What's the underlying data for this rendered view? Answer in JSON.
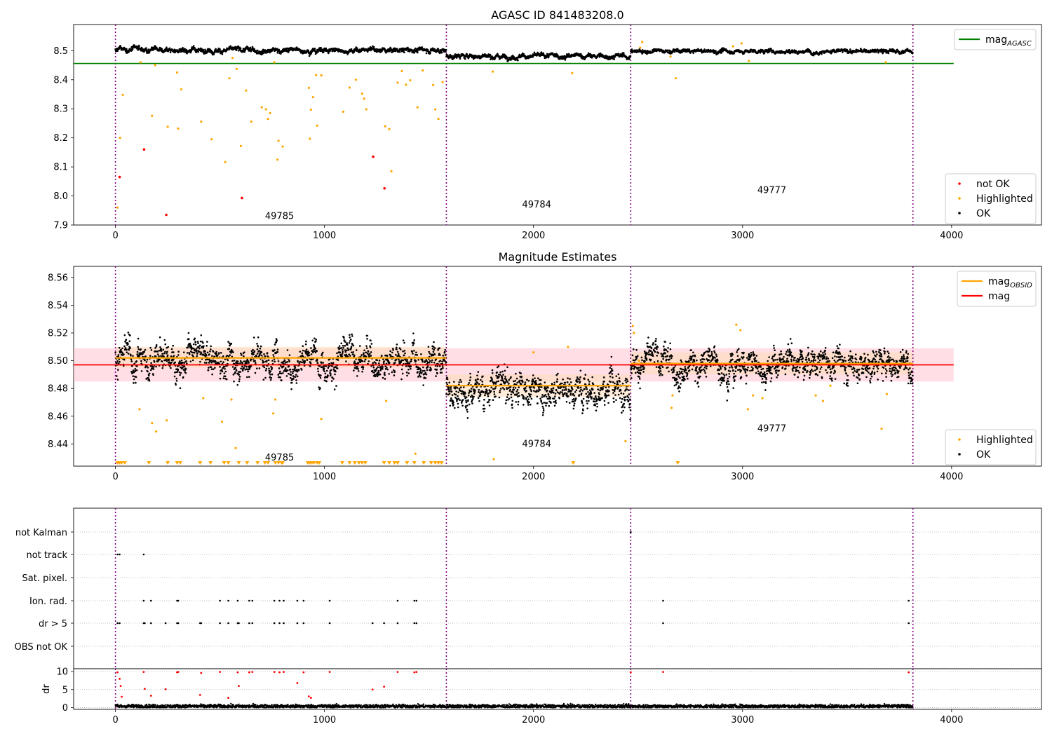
{
  "figure": {
    "title": "AGASC ID 841483208.0"
  },
  "colors": {
    "ok": "#000000",
    "highlighted": "#FFA500",
    "not_ok": "#FF0000",
    "agasc_line": "#008000",
    "obsid_line": "#FFA500",
    "mag_line": "#FF0000",
    "boundary": "#800080",
    "mag_band": "#FFC0CB",
    "obsid_band": "#FFDAB9"
  },
  "chart_data": [
    {
      "type": "scatter",
      "title": "",
      "xlim": [
        -200,
        4430
      ],
      "ylim": [
        7.9,
        8.59
      ],
      "x_ticks": [
        0,
        1000,
        2000,
        3000,
        4000
      ],
      "x_tick_labels": [
        "0",
        "1000",
        "2000",
        "3000",
        "4000"
      ],
      "y_ticks": [
        7.9,
        8.0,
        8.1,
        8.2,
        8.3,
        8.4,
        8.5
      ],
      "y_tick_labels": [
        "7.9",
        "8.0",
        "8.1",
        "8.2",
        "8.3",
        "8.4",
        "8.5"
      ],
      "obsid_boundaries": [
        0,
        1583,
        2465,
        3815
      ],
      "obsids": [
        {
          "label": "49785",
          "x": 785,
          "y": 7.93
        },
        {
          "label": "49784",
          "x": 2015,
          "y": 7.97
        },
        {
          "label": "49777",
          "x": 3140,
          "y": 8.02
        }
      ],
      "mag_agasc": 8.456,
      "mag_agasc_x_range": [
        -200,
        4010
      ],
      "ok_segments": [
        {
          "x_range": [
            0,
            1583
          ],
          "mean": 8.502,
          "spread": 0.006
        },
        {
          "x_range": [
            1583,
            2465
          ],
          "mean": 8.481,
          "spread": 0.006
        },
        {
          "x_range": [
            2465,
            3815
          ],
          "mean": 8.498,
          "spread": 0.005
        }
      ],
      "not_ok_points": [
        [
          20,
          8.065
        ],
        [
          137,
          8.16
        ],
        [
          243,
          7.935
        ],
        [
          605,
          7.993
        ],
        [
          1233,
          8.135
        ],
        [
          1287,
          8.026
        ]
      ],
      "highlighted_points": [
        [
          10,
          7.96
        ],
        [
          22,
          8.2
        ],
        [
          35,
          8.348
        ],
        [
          120,
          8.46
        ],
        [
          175,
          8.276
        ],
        [
          190,
          8.45
        ],
        [
          250,
          8.238
        ],
        [
          295,
          8.425
        ],
        [
          300,
          8.232
        ],
        [
          315,
          8.367
        ],
        [
          410,
          8.256
        ],
        [
          460,
          8.195
        ],
        [
          525,
          8.117
        ],
        [
          545,
          8.405
        ],
        [
          560,
          8.475
        ],
        [
          580,
          8.437
        ],
        [
          600,
          8.172
        ],
        [
          625,
          8.363
        ],
        [
          650,
          8.256
        ],
        [
          700,
          8.305
        ],
        [
          720,
          8.298
        ],
        [
          730,
          8.265
        ],
        [
          740,
          8.285
        ],
        [
          760,
          8.46
        ],
        [
          775,
          8.125
        ],
        [
          780,
          8.19
        ],
        [
          800,
          8.17
        ],
        [
          925,
          8.372
        ],
        [
          930,
          8.197
        ],
        [
          935,
          8.297
        ],
        [
          945,
          8.34
        ],
        [
          960,
          8.416
        ],
        [
          965,
          8.242
        ],
        [
          985,
          8.415
        ],
        [
          1090,
          8.29
        ],
        [
          1120,
          8.373
        ],
        [
          1150,
          8.4
        ],
        [
          1180,
          8.352
        ],
        [
          1190,
          8.335
        ],
        [
          1200,
          8.298
        ],
        [
          1290,
          8.24
        ],
        [
          1310,
          8.23
        ],
        [
          1320,
          8.085
        ],
        [
          1350,
          8.39
        ],
        [
          1370,
          8.43
        ],
        [
          1390,
          8.383
        ],
        [
          1410,
          8.398
        ],
        [
          1445,
          8.305
        ],
        [
          1470,
          8.432
        ],
        [
          1520,
          8.382
        ],
        [
          1530,
          8.298
        ],
        [
          1545,
          8.265
        ],
        [
          1565,
          8.392
        ],
        [
          1805,
          8.428
        ],
        [
          2185,
          8.423
        ],
        [
          2510,
          8.51
        ],
        [
          2520,
          8.53
        ],
        [
          2655,
          8.48
        ],
        [
          2680,
          8.405
        ],
        [
          2955,
          8.515
        ],
        [
          2995,
          8.525
        ],
        [
          3030,
          8.465
        ],
        [
          3685,
          8.46
        ]
      ],
      "legends": [
        {
          "entries": [
            {
              "label": "mag",
              "sub": "AGASC",
              "kind": "line",
              "color": "#008000"
            }
          ]
        },
        {
          "entries": [
            {
              "label": "not OK",
              "kind": "dot",
              "color": "#FF0000"
            },
            {
              "label": "Highlighted",
              "kind": "dot",
              "color": "#FFA500"
            },
            {
              "label": "OK",
              "kind": "dot",
              "color": "#000000"
            }
          ]
        }
      ]
    },
    {
      "type": "scatter",
      "title": "Magnitude Estimates",
      "xlim": [
        -200,
        4430
      ],
      "ylim": [
        8.424,
        8.568
      ],
      "x_ticks": [
        0,
        1000,
        2000,
        3000,
        4000
      ],
      "x_tick_labels": [
        "0",
        "1000",
        "2000",
        "3000",
        "4000"
      ],
      "y_ticks": [
        8.44,
        8.46,
        8.48,
        8.5,
        8.52,
        8.54,
        8.56
      ],
      "y_tick_labels": [
        "8.44",
        "8.46",
        "8.48",
        "8.50",
        "8.52",
        "8.54",
        "8.56"
      ],
      "obsid_boundaries": [
        0,
        1583,
        2465,
        3815
      ],
      "obsids": [
        {
          "label": "49785",
          "x": 785,
          "y": 8.43
        },
        {
          "label": "49784",
          "x": 2015,
          "y": 8.44
        },
        {
          "label": "49777",
          "x": 3140,
          "y": 8.451
        }
      ],
      "mag": 8.497,
      "mag_band": [
        8.485,
        8.509
      ],
      "mag_x_range": [
        -200,
        4010
      ],
      "mag_obsid": [
        {
          "x_range": [
            0,
            1583
          ],
          "value": 8.502,
          "band": [
            8.495,
            8.51
          ]
        },
        {
          "x_range": [
            1583,
            2465
          ],
          "value": 8.482,
          "band": [
            8.474,
            8.49
          ]
        },
        {
          "x_range": [
            2465,
            3815
          ],
          "value": 8.498,
          "band": [
            8.49,
            8.506
          ]
        }
      ],
      "ok_segments": [
        {
          "x_range": [
            0,
            1583
          ],
          "mean": 8.502,
          "spread": 0.009
        },
        {
          "x_range": [
            1583,
            2465
          ],
          "mean": 8.481,
          "spread": 0.009
        },
        {
          "x_range": [
            2465,
            3815
          ],
          "mean": 8.498,
          "spread": 0.008
        }
      ],
      "highlighted_points": [
        [
          115,
          8.465
        ],
        [
          175,
          8.455
        ],
        [
          195,
          8.449
        ],
        [
          245,
          8.457
        ],
        [
          420,
          8.473
        ],
        [
          510,
          8.456
        ],
        [
          555,
          8.472
        ],
        [
          575,
          8.437
        ],
        [
          755,
          8.462
        ],
        [
          765,
          8.472
        ],
        [
          985,
          8.458
        ],
        [
          1295,
          8.471
        ],
        [
          1435,
          8.433
        ],
        [
          1810,
          8.429
        ],
        [
          2000,
          8.506
        ],
        [
          2165,
          8.51
        ],
        [
          2440,
          8.442
        ],
        [
          2475,
          8.525
        ],
        [
          2480,
          8.52
        ],
        [
          2505,
          8.5
        ],
        [
          2660,
          8.466
        ],
        [
          2665,
          8.475
        ],
        [
          2970,
          8.526
        ],
        [
          2990,
          8.522
        ],
        [
          3025,
          8.465
        ],
        [
          3050,
          8.475
        ],
        [
          3095,
          8.473
        ],
        [
          3350,
          8.475
        ],
        [
          3385,
          8.471
        ],
        [
          3420,
          8.482
        ],
        [
          3665,
          8.451
        ],
        [
          3690,
          8.476
        ]
      ],
      "bottom_markers": [
        10,
        20,
        30,
        45,
        160,
        250,
        295,
        310,
        405,
        455,
        520,
        540,
        590,
        630,
        680,
        715,
        730,
        765,
        780,
        795,
        800,
        920,
        930,
        940,
        950,
        965,
        975,
        1085,
        1120,
        1145,
        1165,
        1180,
        1195,
        1285,
        1310,
        1335,
        1350,
        1395,
        1430,
        1475,
        1510,
        1530,
        1545,
        1560,
        2190,
        2690
      ],
      "legends": [
        {
          "entries": [
            {
              "label": "mag",
              "sub": "OBSID",
              "kind": "line",
              "color": "#FFA500"
            },
            {
              "label": "mag",
              "kind": "line",
              "color": "#FF0000"
            }
          ]
        },
        {
          "entries": [
            {
              "label": "Highlighted",
              "kind": "dot",
              "color": "#FFA500"
            },
            {
              "label": "OK",
              "kind": "dot",
              "color": "#000000"
            }
          ]
        }
      ]
    },
    {
      "type": "scatter",
      "title": "",
      "xlim": [
        -200,
        4430
      ],
      "categories": [
        "not Kalman",
        "not track",
        "Sat. pixel.",
        "Ion. rad.",
        "dr > 5",
        "OBS not OK"
      ],
      "obsid_boundaries": [
        0,
        1583,
        2465,
        3815
      ],
      "flags": {
        "not Kalman": [
          2465
        ],
        "not track": [
          10,
          20,
          135
        ],
        "Sat. pixel.": [],
        "Ion. rad.": [
          135,
          170,
          295,
          300,
          500,
          540,
          585,
          640,
          655,
          760,
          785,
          805,
          870,
          900,
          1025,
          1350,
          1430,
          1440,
          2620,
          3795
        ],
        "dr > 5": [
          10,
          20,
          135,
          140,
          170,
          240,
          295,
          300,
          405,
          410,
          500,
          540,
          585,
          590,
          640,
          655,
          760,
          785,
          805,
          870,
          900,
          1025,
          1230,
          1285,
          1350,
          1430,
          1440,
          2620,
          3795
        ],
        "OBS not OK": []
      }
    },
    {
      "type": "scatter",
      "title": "",
      "xlim": [
        -200,
        4430
      ],
      "ylim": [
        -0.5,
        10.8
      ],
      "ylabel": "dr",
      "x_ticks": [
        0,
        1000,
        2000,
        3000,
        4000
      ],
      "x_tick_labels": [
        "0",
        "1000",
        "2000",
        "3000",
        "4000"
      ],
      "y_ticks": [
        0,
        5,
        10
      ],
      "y_tick_labels": [
        "0",
        "5",
        "10"
      ],
      "obsid_boundaries": [
        0,
        1583,
        2465,
        3815
      ],
      "ok_baseline": {
        "x_range": [
          0,
          3815
        ],
        "mean": 0.35,
        "spread": 0.25
      },
      "not_ok_points": [
        [
          10,
          9.8
        ],
        [
          20,
          8.0
        ],
        [
          25,
          6.0
        ],
        [
          30,
          3.0
        ],
        [
          135,
          9.9
        ],
        [
          140,
          5.2
        ],
        [
          170,
          3.3
        ],
        [
          240,
          5.1
        ],
        [
          295,
          9.8
        ],
        [
          300,
          9.9
        ],
        [
          405,
          3.5
        ],
        [
          410,
          9.6
        ],
        [
          500,
          9.9
        ],
        [
          540,
          2.7
        ],
        [
          585,
          9.8
        ],
        [
          590,
          6.0
        ],
        [
          640,
          9.8
        ],
        [
          655,
          9.9
        ],
        [
          760,
          9.9
        ],
        [
          785,
          9.8
        ],
        [
          805,
          9.9
        ],
        [
          870,
          6.8
        ],
        [
          900,
          9.8
        ],
        [
          925,
          3.1
        ],
        [
          935,
          2.7
        ],
        [
          1025,
          9.9
        ],
        [
          1230,
          5.0
        ],
        [
          1285,
          5.8
        ],
        [
          1350,
          9.9
        ],
        [
          1430,
          9.8
        ],
        [
          1440,
          9.9
        ],
        [
          2465,
          9.8
        ],
        [
          2620,
          9.9
        ],
        [
          3795,
          9.8
        ]
      ]
    }
  ]
}
